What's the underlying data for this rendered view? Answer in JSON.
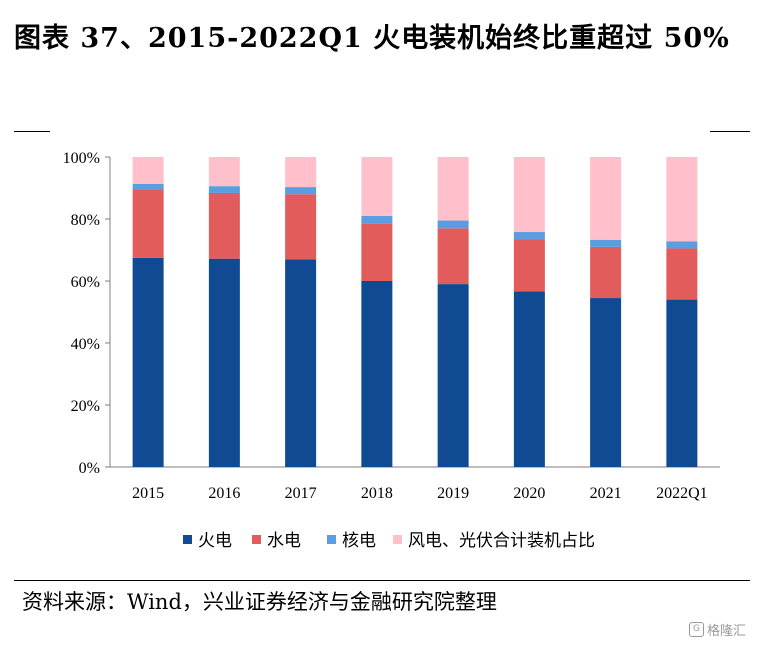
{
  "title": "图表 37、2015-2022Q1 火电装机始终比重超过 50%",
  "source": "资料来源：Wind，兴业证券经济与金融研究院整理",
  "watermark": "格隆汇",
  "chart_data": {
    "type": "bar",
    "stacked": true,
    "categories": [
      "2015",
      "2016",
      "2017",
      "2018",
      "2019",
      "2020",
      "2021",
      "2022Q1"
    ],
    "series": [
      {
        "name": "火电",
        "color": "#0f4a93",
        "values": [
          67.5,
          67.2,
          67.0,
          60.0,
          59.0,
          56.6,
          54.5,
          54.0
        ]
      },
      {
        "name": "水电",
        "color": "#e25c5c",
        "values": [
          22.0,
          21.2,
          21.0,
          18.5,
          18.0,
          16.8,
          16.5,
          16.5
        ]
      },
      {
        "name": "核电",
        "color": "#5b9de1",
        "values": [
          1.8,
          2.2,
          2.3,
          2.5,
          2.5,
          2.4,
          2.3,
          2.3
        ]
      },
      {
        "name": "风电、光伏合计装机占比",
        "color": "#ffc0cb",
        "values": [
          8.7,
          9.4,
          9.7,
          19.0,
          20.5,
          24.2,
          26.7,
          27.2
        ]
      }
    ],
    "ylim": [
      0,
      100
    ],
    "yticks": [
      "0%",
      "20%",
      "40%",
      "60%",
      "80%",
      "100%"
    ],
    "legend_position": "bottom",
    "grid": false
  }
}
